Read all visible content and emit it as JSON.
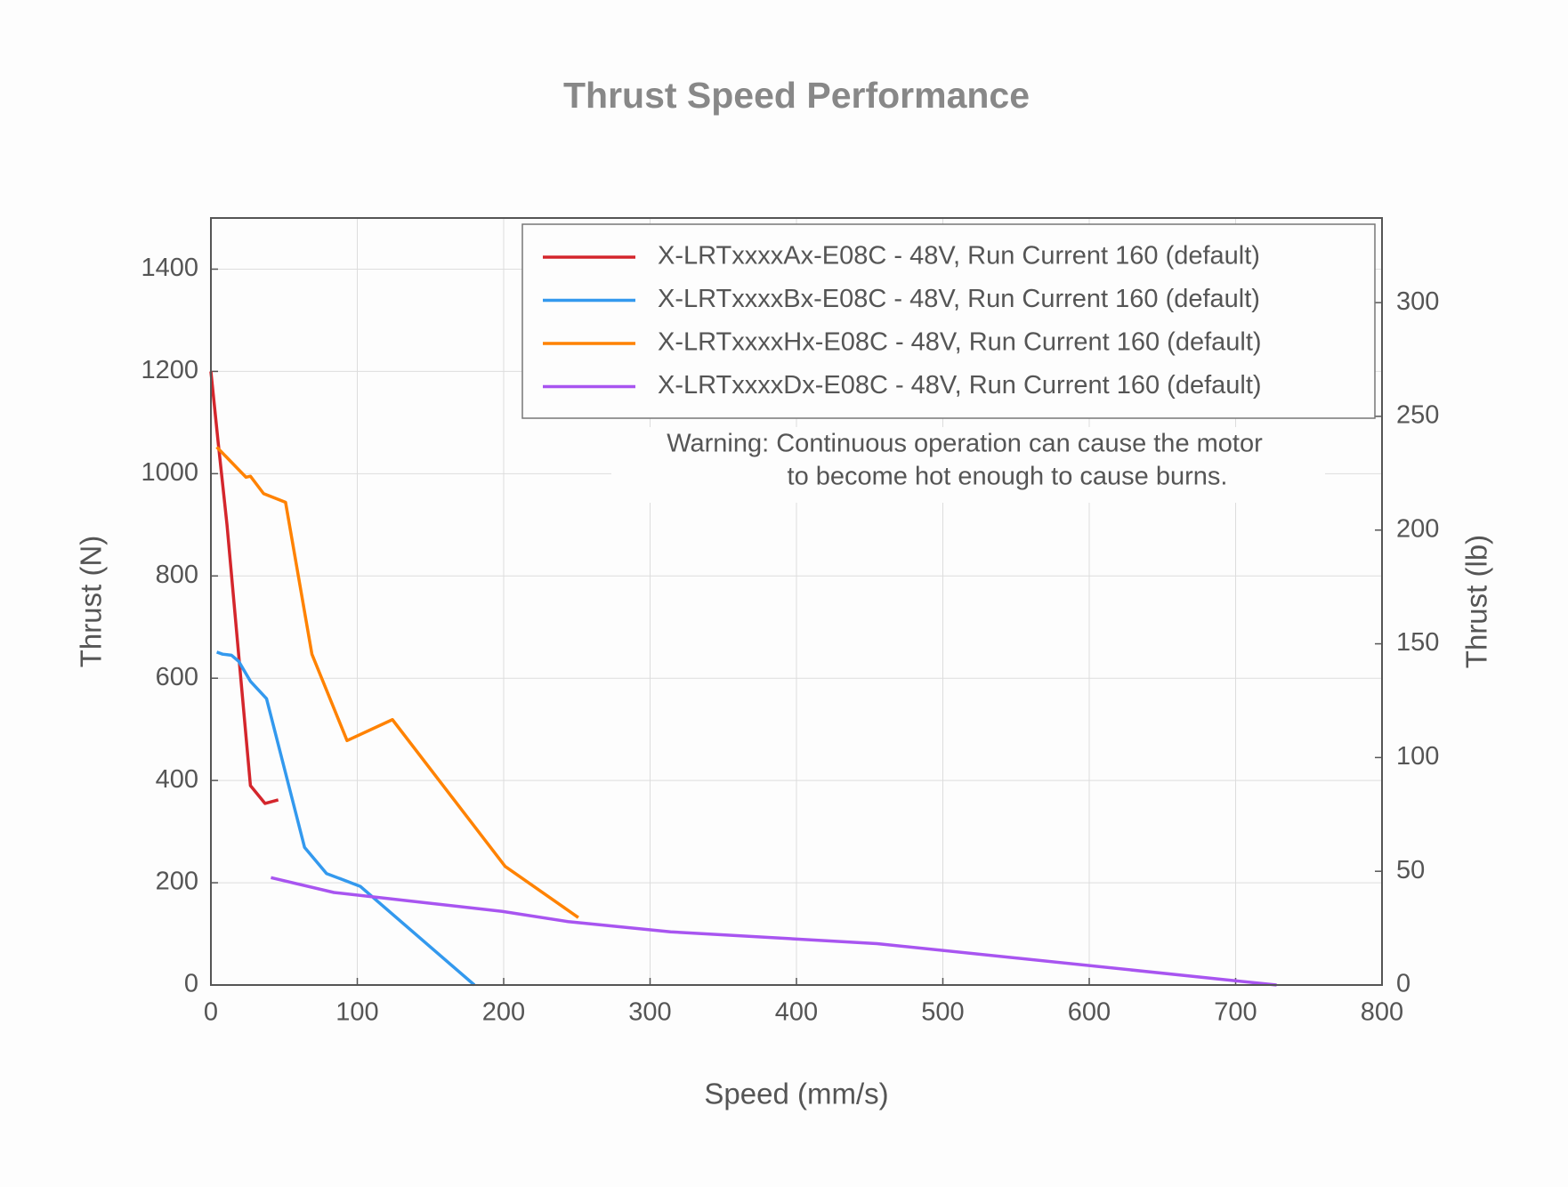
{
  "chart_data": {
    "type": "line",
    "title": "Thrust Speed Performance",
    "x_label": "Speed (mm/s)",
    "y_label": "Thrust (N)",
    "y2_label": "Thrust (lb)",
    "annotation": [
      "Warning: Continuous operation can cause the motor",
      "to become hot enough to cause burns."
    ],
    "xlim": [
      0,
      800
    ],
    "xticks": [
      0,
      100,
      200,
      300,
      400,
      500,
      600,
      700,
      800
    ],
    "ylim": [
      0,
      1500
    ],
    "yticks": [
      0,
      200,
      400,
      600,
      800,
      1000,
      1200,
      1400
    ],
    "y2lim": [
      0,
      337.2
    ],
    "y2ticks": [
      0,
      50,
      100,
      150,
      200,
      250,
      300
    ],
    "grid": true,
    "legend": "upper right",
    "series": [
      {
        "name": "X-LRTxxxxAx-E08C - 48V, Run Current 160 (default)",
        "color": "#d4262c",
        "x": [
          0,
          5,
          11,
          27,
          37,
          46
        ],
        "values": [
          1200,
          1060,
          900,
          390,
          355,
          362
        ]
      },
      {
        "name": "X-LRTxxxxBx-E08C - 48V, Run Current 160 (default)",
        "color": "#3399ee",
        "x": [
          4,
          8,
          14,
          19,
          27,
          38,
          64,
          79,
          102,
          180
        ],
        "values": [
          651,
          647,
          645,
          633,
          594,
          560,
          269,
          218,
          193,
          0
        ]
      },
      {
        "name": "X-LRTxxxxHx-E08C - 48V, Run Current 160 (default)",
        "color": "#ff8200",
        "x": [
          4,
          24,
          27,
          36,
          51,
          69,
          93,
          124,
          201,
          251
        ],
        "values": [
          1052,
          993,
          995,
          961,
          944,
          647,
          478,
          519,
          232,
          132
        ]
      },
      {
        "name": "X-LRTxxxxDx-E08C - 48V, Run Current 160 (default)",
        "color": "#a855f0",
        "x": [
          41,
          84,
          199,
          244,
          314,
          455,
          728
        ],
        "values": [
          210,
          181,
          144,
          124,
          104,
          81,
          0
        ]
      }
    ]
  }
}
